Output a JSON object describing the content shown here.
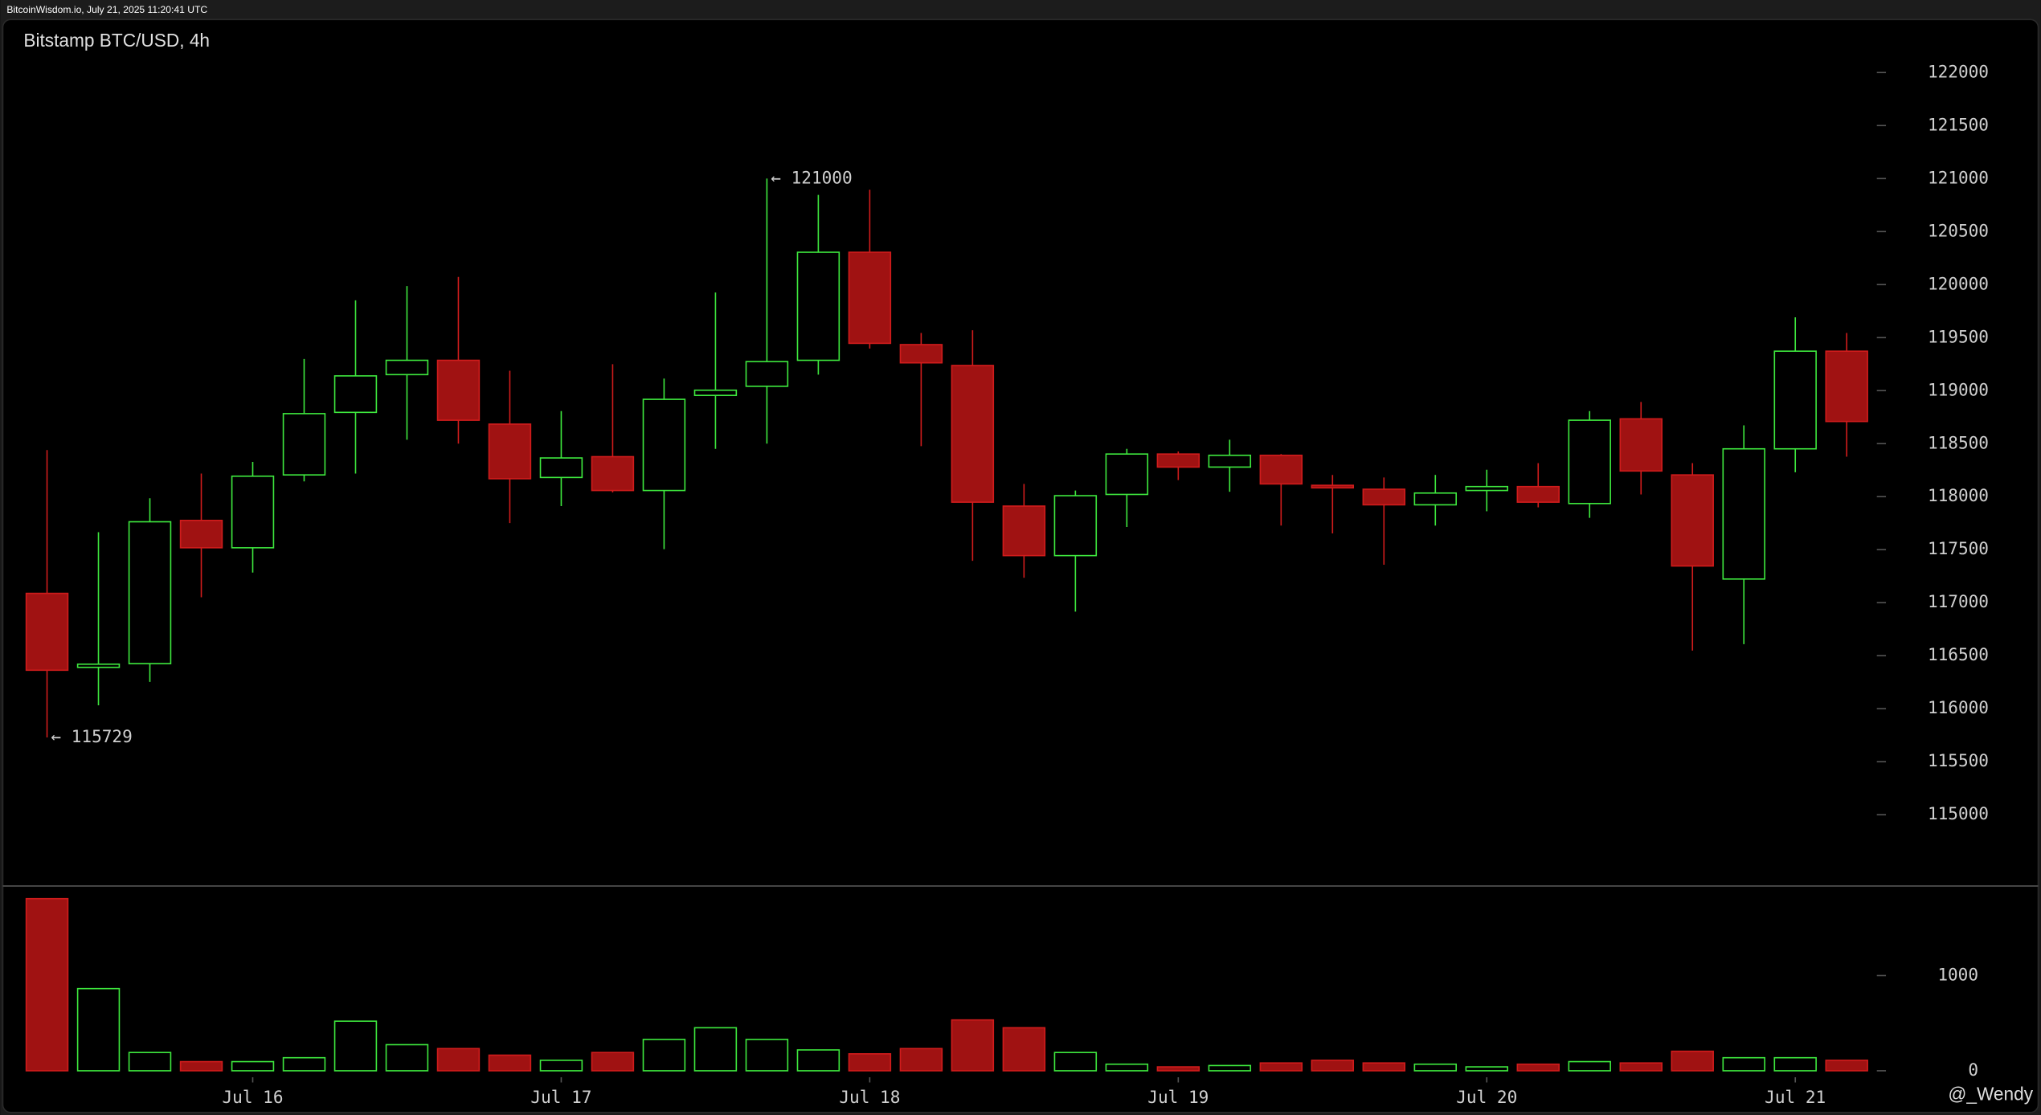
{
  "header": "BitcoinWisdom.io, July 21, 2025 11:20:41 UTC",
  "watermark": "@_Wendy",
  "chart_data": {
    "type": "candlestick",
    "title": "Bitstamp BTC/USD, 4h",
    "categories": [
      null,
      null,
      null,
      null,
      "Jul 16",
      null,
      null,
      null,
      null,
      null,
      "Jul 17",
      null,
      null,
      null,
      null,
      null,
      "Jul 18",
      null,
      null,
      null,
      null,
      null,
      "Jul 19",
      null,
      null,
      null,
      null,
      null,
      "Jul 20",
      null,
      null,
      null,
      null,
      null,
      "Jul 21",
      null
    ],
    "open": [
      117088,
      116390,
      116425,
      117776,
      117518,
      118205,
      118795,
      119151,
      119286,
      118684,
      118181,
      118377,
      118058,
      118955,
      119041,
      119286,
      120305,
      119434,
      119237,
      117911,
      117444,
      118021,
      118402,
      118279,
      118390,
      118107,
      118070,
      117923,
      118058,
      118095,
      117935,
      118734,
      118205,
      117223,
      118451,
      119372
    ],
    "high": [
      118439,
      117665,
      117985,
      118218,
      118328,
      119298,
      119851,
      119986,
      120072,
      119188,
      118807,
      119249,
      119114,
      119925,
      121000,
      120846,
      120895,
      119544,
      119569,
      118120,
      118058,
      118451,
      118426,
      118537,
      118402,
      118205,
      118181,
      118205,
      118254,
      118316,
      118807,
      118893,
      118316,
      118672,
      119691,
      119544
    ],
    "low": [
      115729,
      116032,
      116253,
      117051,
      117284,
      118144,
      118218,
      118537,
      118500,
      117751,
      117911,
      118040,
      117505,
      118451,
      118500,
      119151,
      119397,
      118476,
      117395,
      117235,
      116916,
      117714,
      118156,
      118046,
      117727,
      117653,
      117358,
      117727,
      117862,
      117899,
      117800,
      118021,
      116548,
      116609,
      118230,
      118377
    ],
    "close": [
      116363,
      116420,
      117763,
      117518,
      118193,
      118783,
      119139,
      119286,
      118721,
      118169,
      118365,
      118058,
      118918,
      119004,
      119274,
      120305,
      119446,
      119262,
      117948,
      117444,
      118009,
      118402,
      118279,
      118390,
      118120,
      118083,
      117923,
      118034,
      118095,
      117948,
      118721,
      118242,
      117346,
      118451,
      119372,
      118709
    ],
    "volume": [
      1808,
      863,
      192,
      96,
      96,
      137,
      521,
      274,
      233,
      164,
      110,
      192,
      329,
      452,
      329,
      219,
      178,
      233,
      534,
      452,
      192,
      69,
      41,
      55,
      82,
      110,
      82,
      69,
      41,
      69,
      96,
      82,
      205,
      137,
      137,
      110
    ],
    "ylim": [
      114340,
      122500
    ],
    "yticks": [
      115000,
      115500,
      116000,
      116500,
      117000,
      117500,
      118000,
      118500,
      119000,
      119500,
      120000,
      120500,
      121000,
      121500,
      122000
    ],
    "volume_ylim": [
      0,
      1900
    ],
    "volume_yticks": [
      0,
      1000
    ],
    "annotations": [
      "← 121000",
      "← 115729"
    ],
    "up_color": "#3ee83e",
    "down_color": "#a01212",
    "down_stroke": "#d01c1c"
  }
}
